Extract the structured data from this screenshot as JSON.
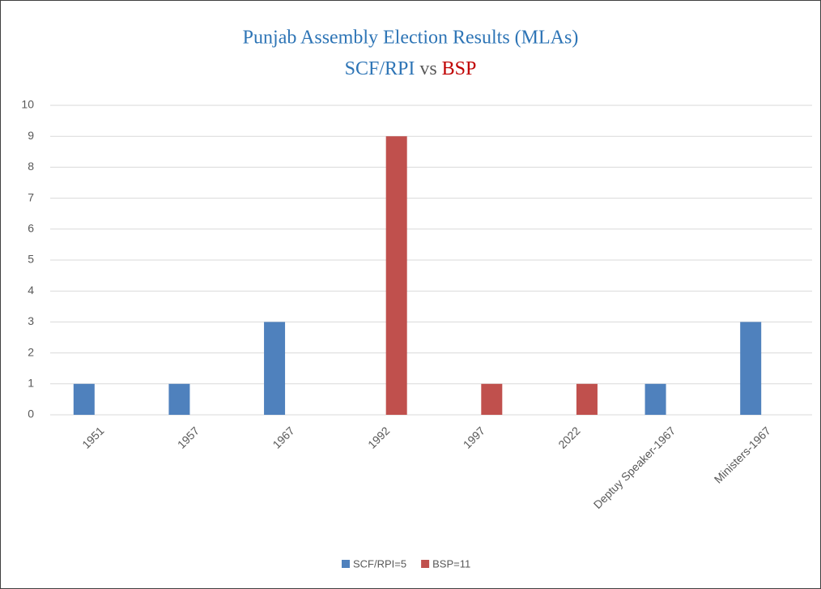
{
  "chart_data": {
    "type": "bar",
    "title": "Punjab Assembly Election Results (MLAs)",
    "subtitle": [
      {
        "text": "SCF/RPI",
        "color": "#2e75b6"
      },
      {
        "text": "vs",
        "color": "#595959"
      },
      {
        "text": "BSP",
        "color": "#c00000"
      }
    ],
    "categories": [
      "1951",
      "1957",
      "1967",
      "1992",
      "1997",
      "2022",
      "Deptuy Speaker-1967",
      "Ministers-1967"
    ],
    "series": [
      {
        "name": "SCF/RPI=5",
        "color": "#4f81bd",
        "values": [
          1,
          1,
          3,
          0,
          0,
          0,
          1,
          3
        ]
      },
      {
        "name": "BSP=11",
        "color": "#c0504d",
        "values": [
          0,
          0,
          0,
          9,
          1,
          1,
          0,
          0
        ]
      }
    ],
    "ylim": [
      0,
      10
    ],
    "yticks": [
      0,
      1,
      2,
      3,
      4,
      5,
      6,
      7,
      8,
      9,
      10
    ],
    "grid": true,
    "legend": "bottom"
  }
}
